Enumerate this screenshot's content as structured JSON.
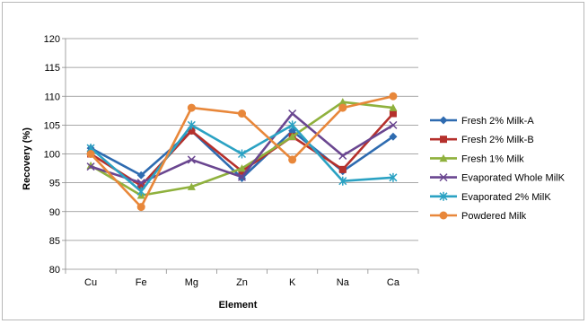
{
  "chart_data": {
    "type": "line",
    "categories": [
      "Cu",
      "Fe",
      "Mg",
      "Zn",
      "K",
      "Na",
      "Ca"
    ],
    "xlabel": "Element",
    "ylabel": "Recovery (%)",
    "ylim": [
      80,
      120
    ],
    "yticks": [
      80,
      85,
      90,
      95,
      100,
      105,
      110,
      115,
      120
    ],
    "grid": "horizontal",
    "legend": "right",
    "series": [
      {
        "name": "Fresh 2% Milk-A",
        "color": "#2e6bb0",
        "marker": "diamond",
        "values": [
          101,
          96.3,
          104,
          95.8,
          104,
          97,
          103
        ]
      },
      {
        "name": "Fresh 2% Milk-B",
        "color": "#b5302c",
        "marker": "square",
        "values": [
          100,
          94.5,
          104,
          97,
          103,
          97.3,
          107
        ]
      },
      {
        "name": "Fresh 1% Milk",
        "color": "#8fb13d",
        "marker": "triangle",
        "values": [
          98,
          92.8,
          94.3,
          97.5,
          103,
          109,
          108
        ]
      },
      {
        "name": "Evaporated Whole MilK",
        "color": "#6a4690",
        "marker": "x",
        "values": [
          97.8,
          95,
          99,
          96,
          107,
          99.7,
          105
        ]
      },
      {
        "name": "Evaporated 2% MilK",
        "color": "#2ba2c3",
        "marker": "star",
        "values": [
          101,
          93.5,
          105,
          100,
          105,
          95.3,
          95.9
        ]
      },
      {
        "name": "Powdered Milk",
        "color": "#e8873a",
        "marker": "circle",
        "values": [
          100,
          90.8,
          108,
          107,
          99,
          108,
          110
        ]
      }
    ]
  }
}
